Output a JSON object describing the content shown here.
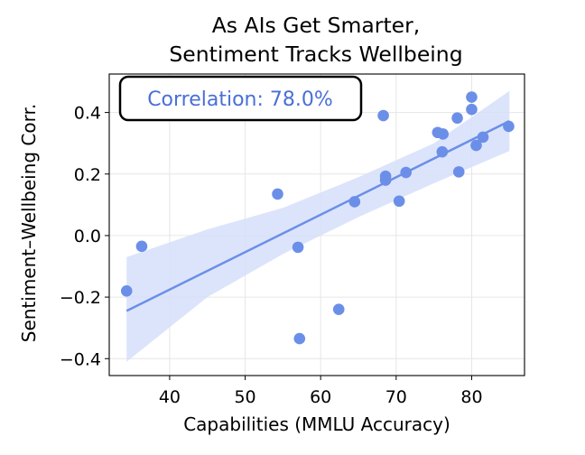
{
  "chart_data": {
    "type": "scatter",
    "title_line1": "As AIs Get Smarter,",
    "title_line2": "Sentiment Tracks Wellbeing",
    "xlabel": "Capabilities (MMLU Accuracy)",
    "ylabel": "Sentiment–Wellbeing Corr.",
    "xlim": [
      32,
      87
    ],
    "ylim": [
      -0.455,
      0.525
    ],
    "xticks": [
      40,
      50,
      60,
      70,
      80
    ],
    "yticks": [
      -0.4,
      -0.2,
      0.0,
      0.2,
      0.4
    ],
    "ytick_labels": [
      "−0.4",
      "−0.2",
      "0.0",
      "0.2",
      "0.4"
    ],
    "grid": true,
    "annotation": "Correlation: 78.0%",
    "annotation_position": "top-left",
    "colors": {
      "points": "#6b8fe8",
      "line": "#6b8fe8",
      "band": "#d6dffa",
      "annotation_text": "#4a6fd8"
    },
    "regression": {
      "x_start": 34.3,
      "y_start": -0.245,
      "x_end": 85.0,
      "y_end": 0.372
    },
    "confidence_band": {
      "x": [
        34.3,
        45,
        55,
        65,
        75,
        85.0
      ],
      "lower": [
        -0.41,
        -0.2,
        -0.06,
        0.06,
        0.17,
        0.275
      ],
      "upper": [
        -0.07,
        0.02,
        0.09,
        0.19,
        0.3,
        0.47
      ]
    },
    "points": [
      {
        "x": 34.3,
        "y": -0.18
      },
      {
        "x": 36.3,
        "y": -0.035
      },
      {
        "x": 54.3,
        "y": 0.135
      },
      {
        "x": 57.0,
        "y": -0.038
      },
      {
        "x": 57.2,
        "y": -0.335
      },
      {
        "x": 62.4,
        "y": -0.24
      },
      {
        "x": 64.5,
        "y": 0.11
      },
      {
        "x": 68.3,
        "y": 0.39
      },
      {
        "x": 68.6,
        "y": 0.193
      },
      {
        "x": 68.6,
        "y": 0.18
      },
      {
        "x": 70.4,
        "y": 0.112
      },
      {
        "x": 71.3,
        "y": 0.205
      },
      {
        "x": 75.5,
        "y": 0.335
      },
      {
        "x": 76.2,
        "y": 0.33
      },
      {
        "x": 76.1,
        "y": 0.272
      },
      {
        "x": 78.1,
        "y": 0.382
      },
      {
        "x": 78.3,
        "y": 0.207
      },
      {
        "x": 80.0,
        "y": 0.45
      },
      {
        "x": 80.0,
        "y": 0.41
      },
      {
        "x": 80.6,
        "y": 0.293
      },
      {
        "x": 81.5,
        "y": 0.32
      },
      {
        "x": 84.9,
        "y": 0.355
      }
    ]
  }
}
